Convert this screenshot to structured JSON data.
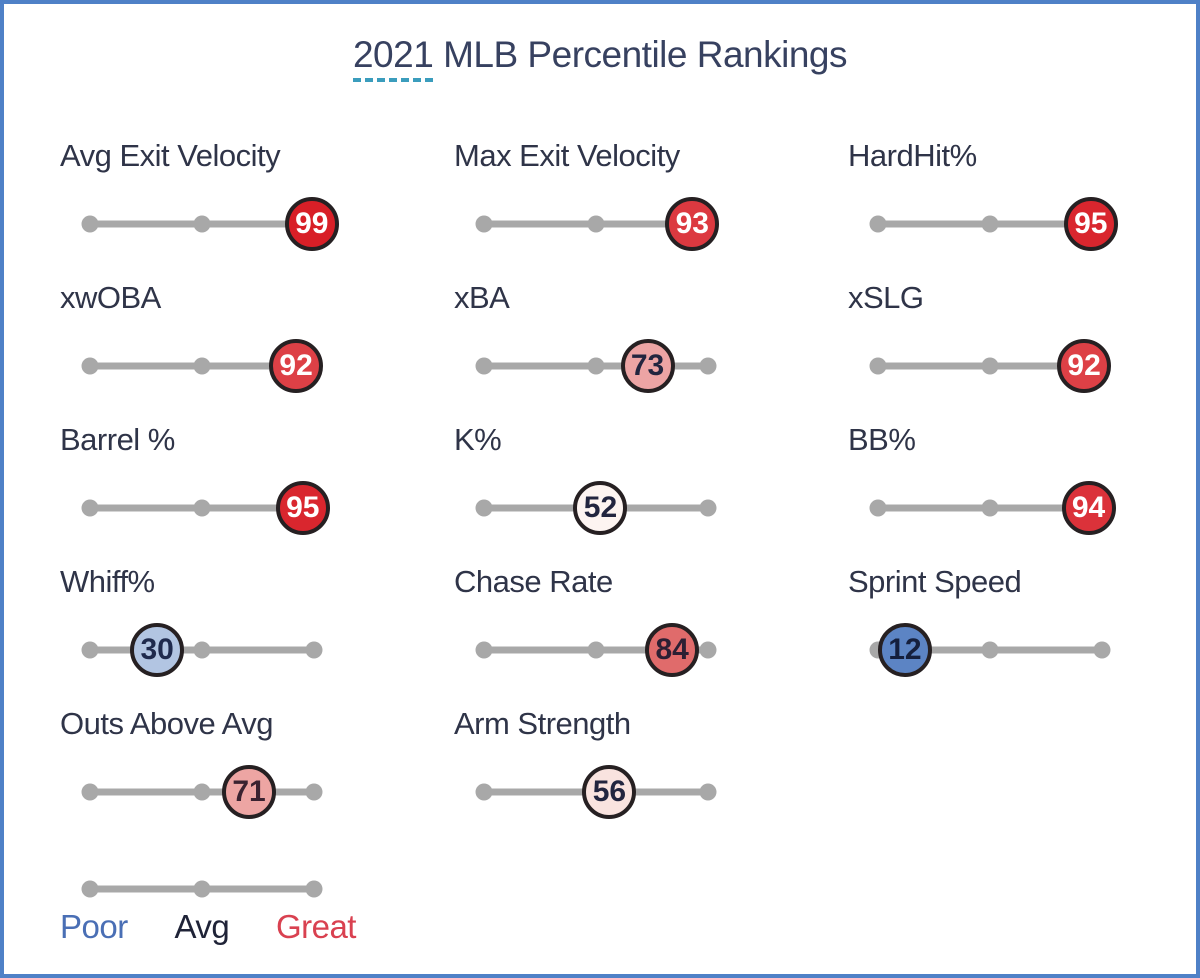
{
  "header": {
    "title_year": "2021",
    "title_rest": " MLB Percentile Rankings"
  },
  "theme": {
    "page_bg": "#ffffff",
    "border_color": "#4f81c7",
    "track_color": "#a8a8a8",
    "label_color": "#2f3448",
    "title_color": "#374160",
    "year_underline_color": "#3b9dbd",
    "bubble_border_color": "#262022"
  },
  "legend": {
    "items": [
      {
        "label": "Poor",
        "color": "#4a6fb5"
      },
      {
        "label": "Avg",
        "color": "#1f2337"
      },
      {
        "label": "Great",
        "color": "#d94150"
      }
    ]
  },
  "chart_data": {
    "type": "scatter",
    "variant": "percentile-slider-dotplot",
    "title": "2021 MLB Percentile Rankings",
    "x_range": [
      0,
      100
    ],
    "layout": "3 columns, filled left-to-right top-to-bottom, legend bottom-left",
    "grid": "off",
    "categories": [
      "Avg Exit Velocity",
      "Max Exit Velocity",
      "HardHit%",
      "xwOBA",
      "xBA",
      "xSLG",
      "Barrel %",
      "K%",
      "BB%",
      "Whiff%",
      "Chase Rate",
      "Sprint Speed",
      "Outs Above Avg",
      "Arm Strength"
    ],
    "values": [
      99,
      93,
      95,
      92,
      73,
      92,
      95,
      52,
      94,
      30,
      84,
      12,
      71,
      56
    ],
    "legend_labels": [
      "Poor",
      "Avg",
      "Great"
    ],
    "stats": [
      {
        "label": "Avg Exit Velocity",
        "value": 99,
        "fill": "#d81f27",
        "text_color": "#ffffff"
      },
      {
        "label": "Max Exit Velocity",
        "value": 93,
        "fill": "#dc3940",
        "text_color": "#ffffff"
      },
      {
        "label": "HardHit%",
        "value": 95,
        "fill": "#d9262e",
        "text_color": "#ffffff"
      },
      {
        "label": "xwOBA",
        "value": 92,
        "fill": "#dd4046",
        "text_color": "#ffffff"
      },
      {
        "label": "xBA",
        "value": 73,
        "fill": "#eca4a4",
        "text_color": "#22253f"
      },
      {
        "label": "xSLG",
        "value": 92,
        "fill": "#dd4046",
        "text_color": "#ffffff"
      },
      {
        "label": "Barrel %",
        "value": 95,
        "fill": "#d9262e",
        "text_color": "#ffffff"
      },
      {
        "label": "K%",
        "value": 52,
        "fill": "#fdf4f1",
        "text_color": "#22253f"
      },
      {
        "label": "BB%",
        "value": 94,
        "fill": "#db323a",
        "text_color": "#ffffff"
      },
      {
        "label": "Whiff%",
        "value": 30,
        "fill": "#b2c5e2",
        "text_color": "#1f2a4d"
      },
      {
        "label": "Chase Rate",
        "value": 84,
        "fill": "#e06b6b",
        "text_color": "#2c1f33"
      },
      {
        "label": "Sprint Speed",
        "value": 12,
        "fill": "#5c84c4",
        "text_color": "#151f3d"
      },
      {
        "label": "Outs Above Avg",
        "value": 71,
        "fill": "#eda5a3",
        "text_color": "#3a2230"
      },
      {
        "label": "Arm Strength",
        "value": 56,
        "fill": "#f9e3df",
        "text_color": "#22253f"
      }
    ]
  }
}
